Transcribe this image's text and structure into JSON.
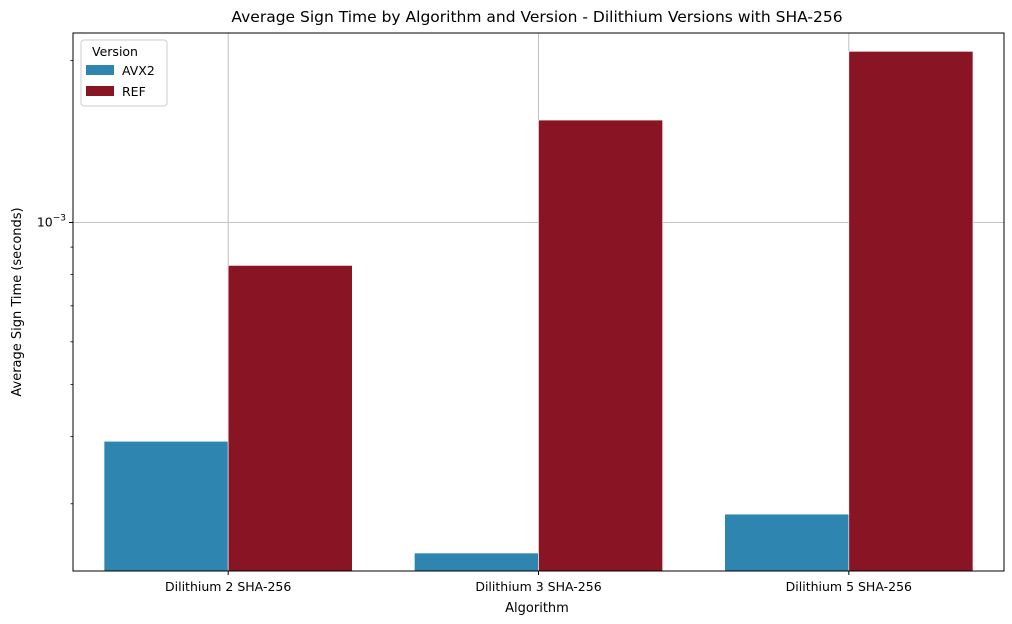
{
  "chart_data": {
    "type": "bar",
    "title": "Average Sign Time by Algorithm and Version - Dilithium Versions with SHA-256",
    "xlabel": "Algorithm",
    "ylabel": "Average Sign Time (seconds)",
    "yscale": "log",
    "ylim": [
      0.000225,
      0.00225
    ],
    "y_major_ticks": [
      {
        "value": 0.001,
        "base": "10",
        "exp": "−3"
      }
    ],
    "y_minor_ticks": [
      0.0003,
      0.0004,
      0.0005,
      0.0006,
      0.0007,
      0.0008,
      0.0009,
      0.002
    ],
    "categories": [
      "Dilithium 2 SHA-256",
      "Dilithium 3 SHA-256",
      "Dilithium 5 SHA-256"
    ],
    "series": [
      {
        "name": "AVX2",
        "color": "#2e86b0",
        "values": [
          0.000392,
          0.000243,
          0.000287
        ]
      },
      {
        "name": "REF",
        "color": "#881424",
        "values": [
          0.000832,
          0.00155,
          0.00208
        ]
      }
    ],
    "grid": true,
    "legend": {
      "title": "Version",
      "position": "top-left"
    }
  }
}
